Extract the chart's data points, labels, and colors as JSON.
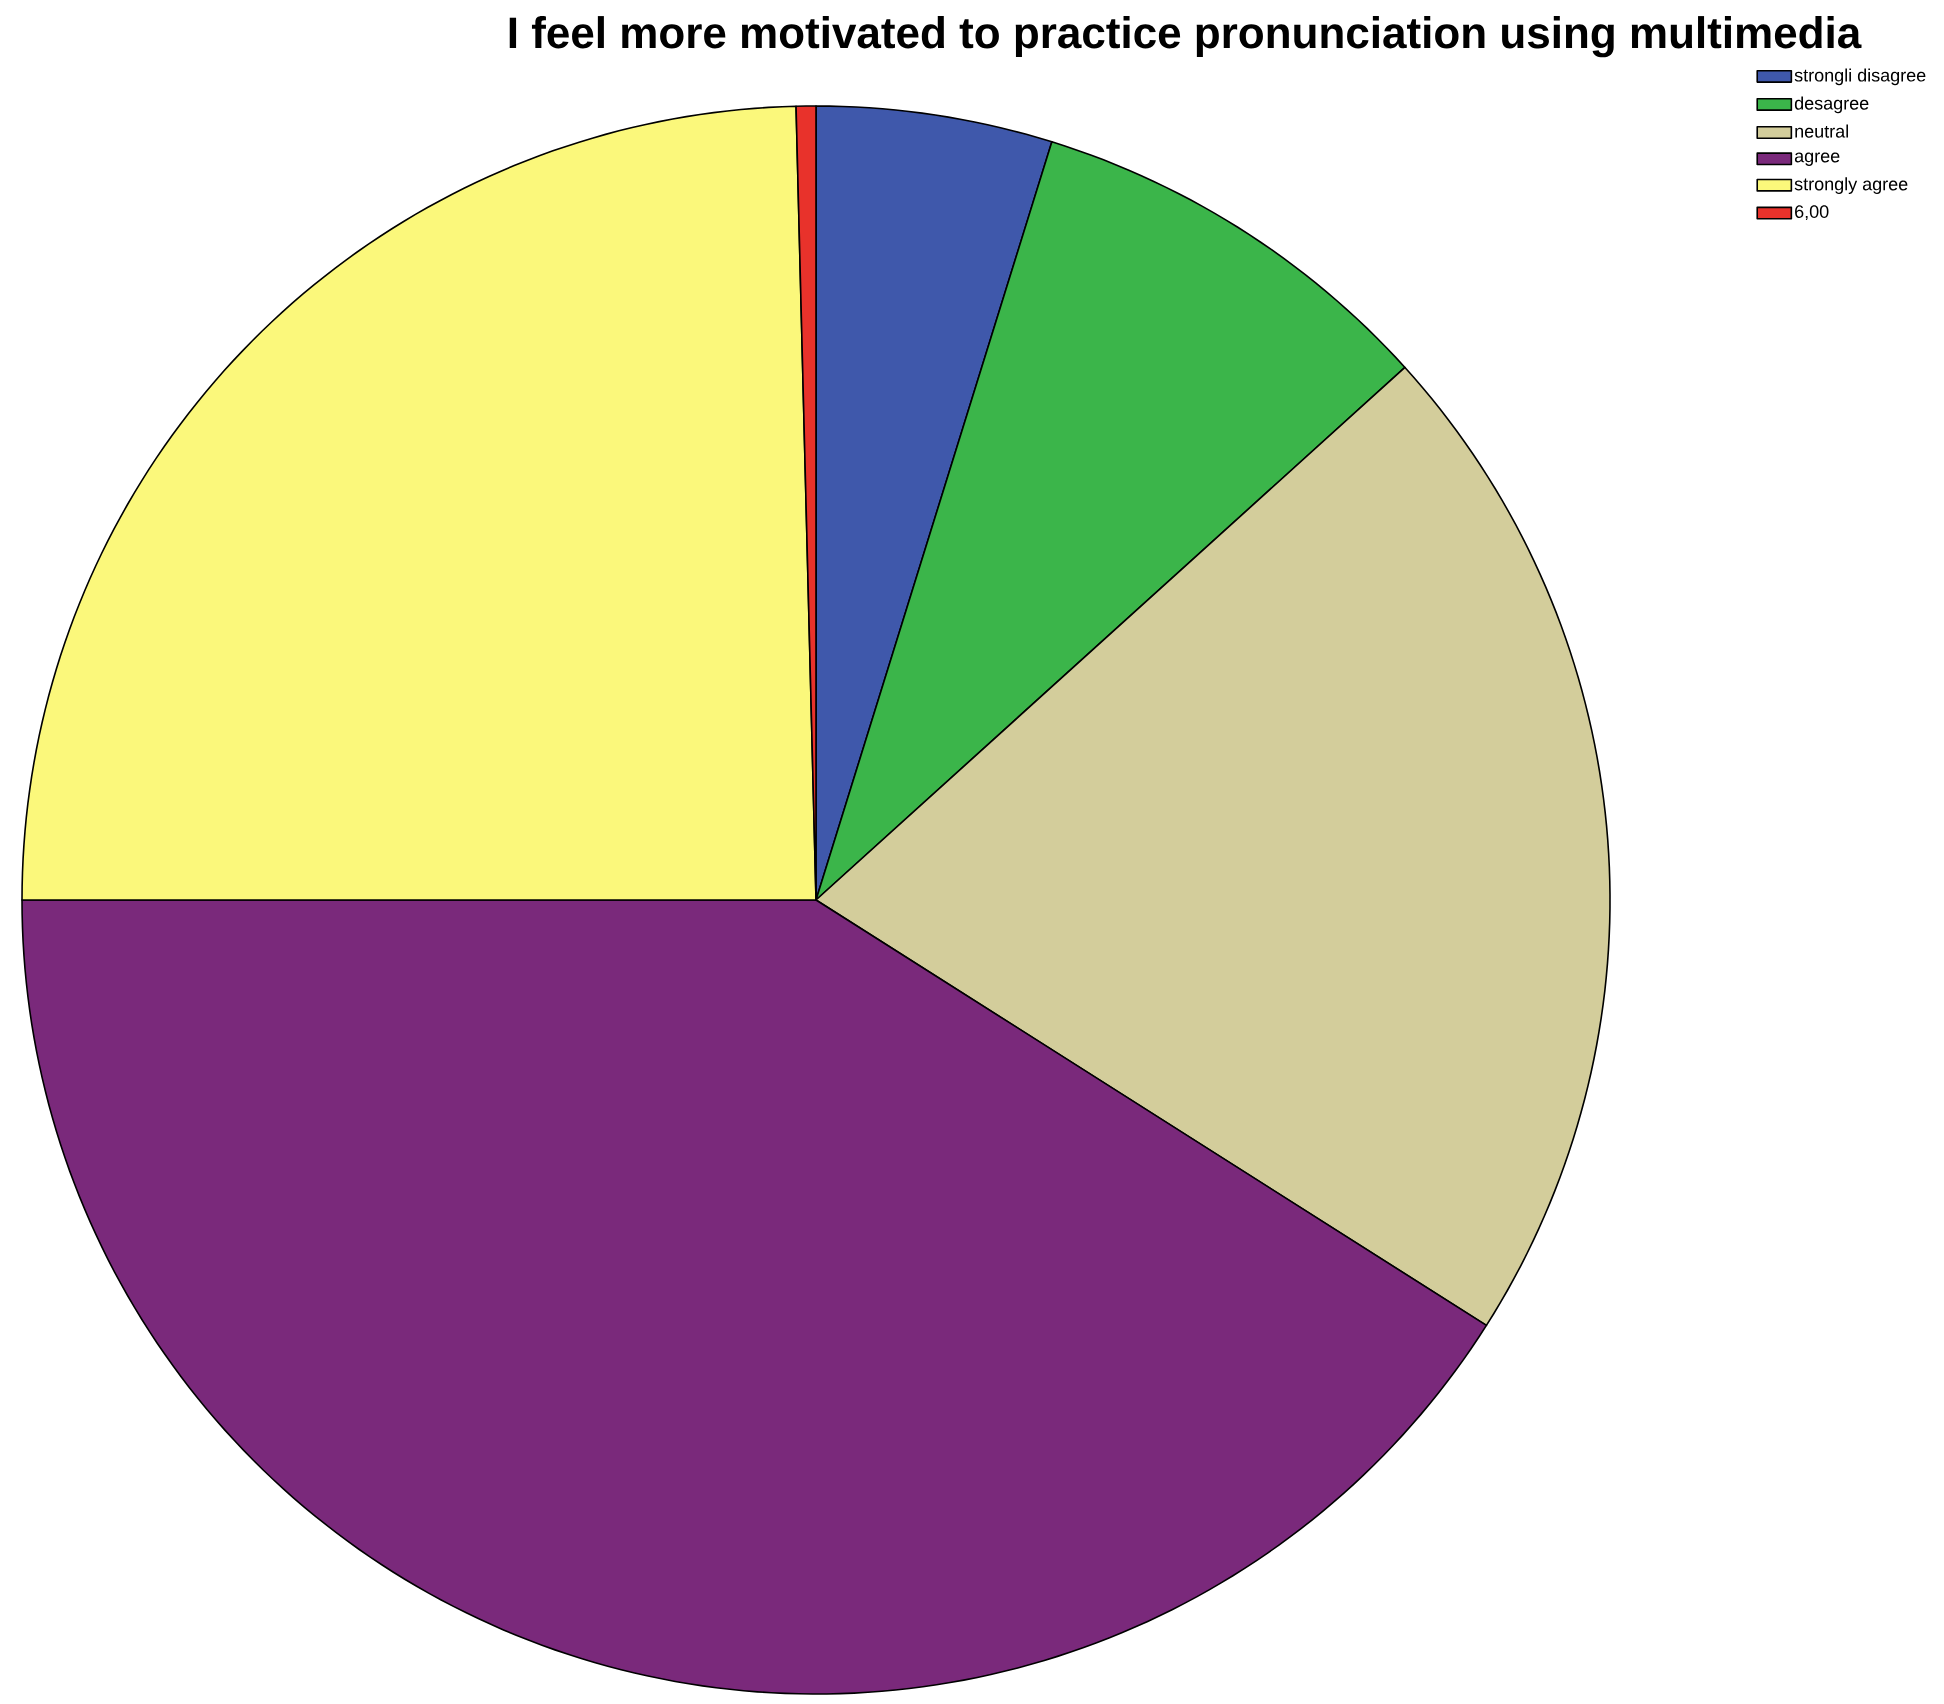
{
  "chart_data": {
    "type": "pie",
    "title": "I feel more motivated to practice pronunciation using multimedia",
    "categories": [
      "strongli disagree",
      "desagree",
      "neutral",
      "agree",
      "strongly agree",
      "6,00"
    ],
    "values": [
      4.8,
      8.5,
      20.7,
      41.0,
      24.6,
      0.4
    ],
    "colors": [
      "#3f58ab",
      "#3bb54a",
      "#d3cd9b",
      "#7a297b",
      "#fbf87b",
      "#e8322b"
    ],
    "legend": "top right"
  }
}
